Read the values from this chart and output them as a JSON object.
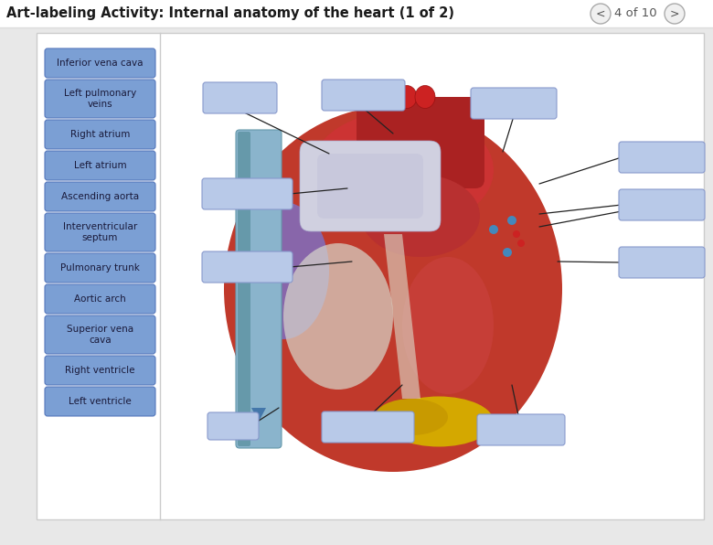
{
  "title": "Art-labeling Activity: Internal anatomy of the heart (1 of 2)",
  "page_info": "4 of 10",
  "bg_color": "#e8e8e8",
  "panel_bg": "#ffffff",
  "sidebar_items": [
    "Inferior vena cava",
    "Left pulmonary\nveins",
    "Right atrium",
    "Left atrium",
    "Ascending aorta",
    "Interventricular\nseptum",
    "Pulmonary trunk",
    "Aortic arch",
    "Superior vena\ncava",
    "Right ventricle",
    "Left ventricle"
  ],
  "button_color": "#7b9fd4",
  "button_border_color": "#5577bb",
  "button_text_color": "#1a1a3a",
  "label_box_color": "#b8c9e8",
  "label_box_border": "#8899cc",
  "title_color": "#1a1a1a",
  "nav_btn_color": "#f0f0f0",
  "nav_btn_border": "#aaaaaa",
  "line_color": "#222222",
  "sidebar_divider": "#cccccc",
  "panel_border": "#cccccc"
}
